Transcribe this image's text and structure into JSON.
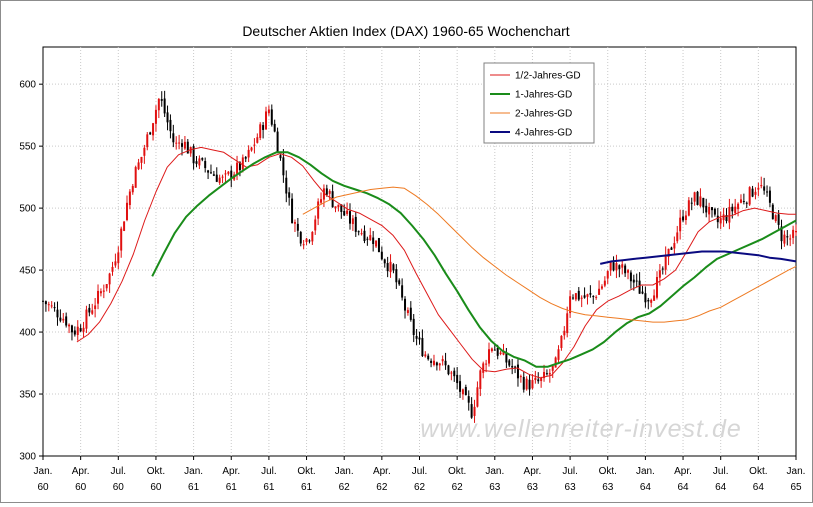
{
  "chart_data": {
    "type": "candlestick-line",
    "title": "Deutscher Aktien Index (DAX) 1960-65 Wochenchart",
    "watermark": "www.wellenreiter-invest.de",
    "ylim": [
      300,
      630
    ],
    "xlim": [
      0,
      20
    ],
    "y_ticks": [
      "300",
      "350",
      "400",
      "450",
      "500",
      "550",
      "600"
    ],
    "x_ticks": [
      {
        "month": "Jan.",
        "year": "60"
      },
      {
        "month": "Apr.",
        "year": "60"
      },
      {
        "month": "Jul.",
        "year": "60"
      },
      {
        "month": "Okt.",
        "year": "60"
      },
      {
        "month": "Jan.",
        "year": "61"
      },
      {
        "month": "Apr.",
        "year": "61"
      },
      {
        "month": "Jul.",
        "year": "61"
      },
      {
        "month": "Okt.",
        "year": "61"
      },
      {
        "month": "Jan.",
        "year": "62"
      },
      {
        "month": "Apr.",
        "year": "62"
      },
      {
        "month": "Jul.",
        "year": "62"
      },
      {
        "month": "Okt.",
        "year": "62"
      },
      {
        "month": "Jan.",
        "year": "63"
      },
      {
        "month": "Apr.",
        "year": "63"
      },
      {
        "month": "Jul.",
        "year": "63"
      },
      {
        "month": "Okt.",
        "year": "63"
      },
      {
        "month": "Jan.",
        "year": "64"
      },
      {
        "month": "Apr.",
        "year": "64"
      },
      {
        "month": "Jul.",
        "year": "64"
      },
      {
        "month": "Okt.",
        "year": "64"
      },
      {
        "month": "Jan.",
        "year": "65"
      }
    ],
    "grid": true,
    "legend_position": "top-right",
    "price_anchors": [
      [
        0.0,
        425
      ],
      [
        0.3,
        418
      ],
      [
        0.6,
        410
      ],
      [
        0.8,
        400
      ],
      [
        1.0,
        405
      ],
      [
        1.2,
        415
      ],
      [
        1.5,
        430
      ],
      [
        1.8,
        448
      ],
      [
        2.0,
        470
      ],
      [
        2.2,
        500
      ],
      [
        2.4,
        525
      ],
      [
        2.6,
        540
      ],
      [
        2.8,
        560
      ],
      [
        3.0,
        580
      ],
      [
        3.1,
        590
      ],
      [
        3.3,
        570
      ],
      [
        3.5,
        550
      ],
      [
        3.7,
        555
      ],
      [
        4.0,
        540
      ],
      [
        4.2,
        535
      ],
      [
        4.5,
        528
      ],
      [
        4.8,
        522
      ],
      [
        5.0,
        528
      ],
      [
        5.3,
        535
      ],
      [
        5.5,
        545
      ],
      [
        5.8,
        565
      ],
      [
        6.0,
        580
      ],
      [
        6.2,
        555
      ],
      [
        6.4,
        525
      ],
      [
        6.6,
        495
      ],
      [
        6.8,
        478
      ],
      [
        7.0,
        475
      ],
      [
        7.1,
        480
      ],
      [
        7.3,
        500
      ],
      [
        7.5,
        518
      ],
      [
        7.7,
        505
      ],
      [
        8.0,
        495
      ],
      [
        8.3,
        485
      ],
      [
        8.6,
        478
      ],
      [
        8.8,
        475
      ],
      [
        9.0,
        462
      ],
      [
        9.3,
        448
      ],
      [
        9.6,
        420
      ],
      [
        9.9,
        395
      ],
      [
        10.2,
        380
      ],
      [
        10.5,
        378
      ],
      [
        10.8,
        368
      ],
      [
        11.0,
        358
      ],
      [
        11.2,
        345
      ],
      [
        11.4,
        335
      ],
      [
        11.6,
        365
      ],
      [
        11.9,
        390
      ],
      [
        12.2,
        380
      ],
      [
        12.5,
        370
      ],
      [
        12.8,
        358
      ],
      [
        13.0,
        358
      ],
      [
        13.2,
        360
      ],
      [
        13.4,
        365
      ],
      [
        13.6,
        372
      ],
      [
        13.8,
        395
      ],
      [
        14.0,
        432
      ],
      [
        14.3,
        428
      ],
      [
        14.6,
        428
      ],
      [
        14.9,
        440
      ],
      [
        15.1,
        455
      ],
      [
        15.4,
        450
      ],
      [
        15.7,
        440
      ],
      [
        15.9,
        432
      ],
      [
        16.1,
        428
      ],
      [
        16.4,
        445
      ],
      [
        16.7,
        470
      ],
      [
        17.0,
        495
      ],
      [
        17.3,
        508
      ],
      [
        17.5,
        505
      ],
      [
        17.7,
        495
      ],
      [
        17.9,
        488
      ],
      [
        18.2,
        495
      ],
      [
        18.5,
        505
      ],
      [
        18.8,
        512
      ],
      [
        19.0,
        520
      ],
      [
        19.2,
        510
      ],
      [
        19.4,
        495
      ],
      [
        19.6,
        478
      ],
      [
        19.8,
        475
      ],
      [
        20.0,
        478
      ]
    ],
    "series": [
      {
        "name": "1/2-Jahres-GD",
        "color": "#dd1a1a",
        "width": 1,
        "points": [
          [
            0.9,
            392
          ],
          [
            1.2,
            398
          ],
          [
            1.5,
            408
          ],
          [
            1.8,
            423
          ],
          [
            2.1,
            441
          ],
          [
            2.4,
            463
          ],
          [
            2.7,
            490
          ],
          [
            3.0,
            513
          ],
          [
            3.3,
            533
          ],
          [
            3.6,
            543
          ],
          [
            3.9,
            547
          ],
          [
            4.2,
            549
          ],
          [
            4.5,
            547
          ],
          [
            4.8,
            545
          ],
          [
            5.1,
            539
          ],
          [
            5.4,
            533
          ],
          [
            5.7,
            535
          ],
          [
            6.0,
            541
          ],
          [
            6.3,
            544
          ],
          [
            6.6,
            541
          ],
          [
            6.9,
            534
          ],
          [
            7.2,
            522
          ],
          [
            7.5,
            511
          ],
          [
            7.8,
            505
          ],
          [
            8.1,
            499
          ],
          [
            8.4,
            496
          ],
          [
            8.7,
            491
          ],
          [
            9.0,
            486
          ],
          [
            9.3,
            478
          ],
          [
            9.6,
            466
          ],
          [
            9.9,
            448
          ],
          [
            10.2,
            431
          ],
          [
            10.5,
            414
          ],
          [
            10.8,
            402
          ],
          [
            11.1,
            390
          ],
          [
            11.4,
            378
          ],
          [
            11.7,
            369
          ],
          [
            12.0,
            368
          ],
          [
            12.3,
            370
          ],
          [
            12.6,
            371
          ],
          [
            12.9,
            366
          ],
          [
            13.2,
            363
          ],
          [
            13.5,
            365
          ],
          [
            13.8,
            375
          ],
          [
            14.1,
            388
          ],
          [
            14.4,
            405
          ],
          [
            14.7,
            418
          ],
          [
            15.0,
            425
          ],
          [
            15.3,
            429
          ],
          [
            15.6,
            434
          ],
          [
            15.9,
            438
          ],
          [
            16.2,
            438
          ],
          [
            16.5,
            443
          ],
          [
            16.8,
            450
          ],
          [
            17.1,
            465
          ],
          [
            17.4,
            481
          ],
          [
            17.7,
            489
          ],
          [
            18.0,
            493
          ],
          [
            18.3,
            494
          ],
          [
            18.6,
            498
          ],
          [
            18.9,
            500
          ],
          [
            19.2,
            498
          ],
          [
            19.5,
            496
          ],
          [
            19.8,
            495
          ],
          [
            20.0,
            495
          ]
        ]
      },
      {
        "name": "1-Jahres-GD",
        "color": "#1a8c1a",
        "width": 2,
        "points": [
          [
            2.9,
            445
          ],
          [
            3.2,
            463
          ],
          [
            3.5,
            480
          ],
          [
            3.8,
            493
          ],
          [
            4.1,
            502
          ],
          [
            4.4,
            510
          ],
          [
            4.7,
            517
          ],
          [
            5.0,
            524
          ],
          [
            5.3,
            530
          ],
          [
            5.6,
            536
          ],
          [
            5.9,
            541
          ],
          [
            6.2,
            545
          ],
          [
            6.5,
            545
          ],
          [
            6.8,
            541
          ],
          [
            7.1,
            535
          ],
          [
            7.4,
            528
          ],
          [
            7.7,
            522
          ],
          [
            8.0,
            518
          ],
          [
            8.3,
            515
          ],
          [
            8.6,
            512
          ],
          [
            8.9,
            508
          ],
          [
            9.2,
            503
          ],
          [
            9.5,
            496
          ],
          [
            9.8,
            486
          ],
          [
            10.1,
            475
          ],
          [
            10.4,
            462
          ],
          [
            10.7,
            447
          ],
          [
            11.0,
            433
          ],
          [
            11.3,
            418
          ],
          [
            11.6,
            404
          ],
          [
            11.9,
            393
          ],
          [
            12.2,
            385
          ],
          [
            12.5,
            380
          ],
          [
            12.8,
            377
          ],
          [
            13.1,
            372
          ],
          [
            13.4,
            372
          ],
          [
            13.7,
            375
          ],
          [
            14.0,
            378
          ],
          [
            14.3,
            382
          ],
          [
            14.6,
            386
          ],
          [
            14.9,
            392
          ],
          [
            15.2,
            400
          ],
          [
            15.5,
            407
          ],
          [
            15.8,
            412
          ],
          [
            16.1,
            415
          ],
          [
            16.4,
            421
          ],
          [
            16.7,
            429
          ],
          [
            17.0,
            437
          ],
          [
            17.3,
            444
          ],
          [
            17.6,
            452
          ],
          [
            17.9,
            459
          ],
          [
            18.2,
            463
          ],
          [
            18.5,
            467
          ],
          [
            18.8,
            471
          ],
          [
            19.1,
            475
          ],
          [
            19.4,
            480
          ],
          [
            19.7,
            485
          ],
          [
            20.0,
            490
          ]
        ]
      },
      {
        "name": "2-Jahres-GD",
        "color": "#ee7a22",
        "width": 1,
        "points": [
          [
            6.9,
            495
          ],
          [
            7.2,
            500
          ],
          [
            7.5,
            505
          ],
          [
            7.8,
            509
          ],
          [
            8.1,
            511
          ],
          [
            8.4,
            513
          ],
          [
            8.7,
            515
          ],
          [
            9.0,
            516
          ],
          [
            9.3,
            517
          ],
          [
            9.6,
            516
          ],
          [
            9.9,
            510
          ],
          [
            10.2,
            503
          ],
          [
            10.5,
            495
          ],
          [
            10.8,
            486
          ],
          [
            11.1,
            477
          ],
          [
            11.4,
            468
          ],
          [
            11.7,
            460
          ],
          [
            12.0,
            453
          ],
          [
            12.3,
            446
          ],
          [
            12.6,
            440
          ],
          [
            12.9,
            434
          ],
          [
            13.2,
            428
          ],
          [
            13.5,
            423
          ],
          [
            13.8,
            419
          ],
          [
            14.1,
            416
          ],
          [
            14.4,
            414
          ],
          [
            14.7,
            413
          ],
          [
            15.0,
            412
          ],
          [
            15.3,
            411
          ],
          [
            15.6,
            410
          ],
          [
            15.9,
            409
          ],
          [
            16.2,
            408
          ],
          [
            16.5,
            408
          ],
          [
            16.8,
            409
          ],
          [
            17.1,
            410
          ],
          [
            17.4,
            413
          ],
          [
            17.7,
            417
          ],
          [
            18.0,
            420
          ],
          [
            18.3,
            425
          ],
          [
            18.6,
            430
          ],
          [
            18.9,
            435
          ],
          [
            19.2,
            440
          ],
          [
            19.5,
            445
          ],
          [
            19.8,
            450
          ],
          [
            20.0,
            453
          ]
        ]
      },
      {
        "name": "4-Jahres-GD",
        "color": "#0a0a80",
        "width": 2,
        "points": [
          [
            14.8,
            455
          ],
          [
            15.1,
            457
          ],
          [
            15.4,
            458
          ],
          [
            15.7,
            459
          ],
          [
            16.0,
            460
          ],
          [
            16.3,
            461
          ],
          [
            16.6,
            462
          ],
          [
            16.9,
            463
          ],
          [
            17.2,
            464
          ],
          [
            17.5,
            465
          ],
          [
            17.8,
            465
          ],
          [
            18.1,
            465
          ],
          [
            18.4,
            464
          ],
          [
            18.7,
            463
          ],
          [
            19.0,
            462
          ],
          [
            19.3,
            460
          ],
          [
            19.6,
            459
          ],
          [
            20.0,
            457
          ]
        ]
      }
    ]
  }
}
